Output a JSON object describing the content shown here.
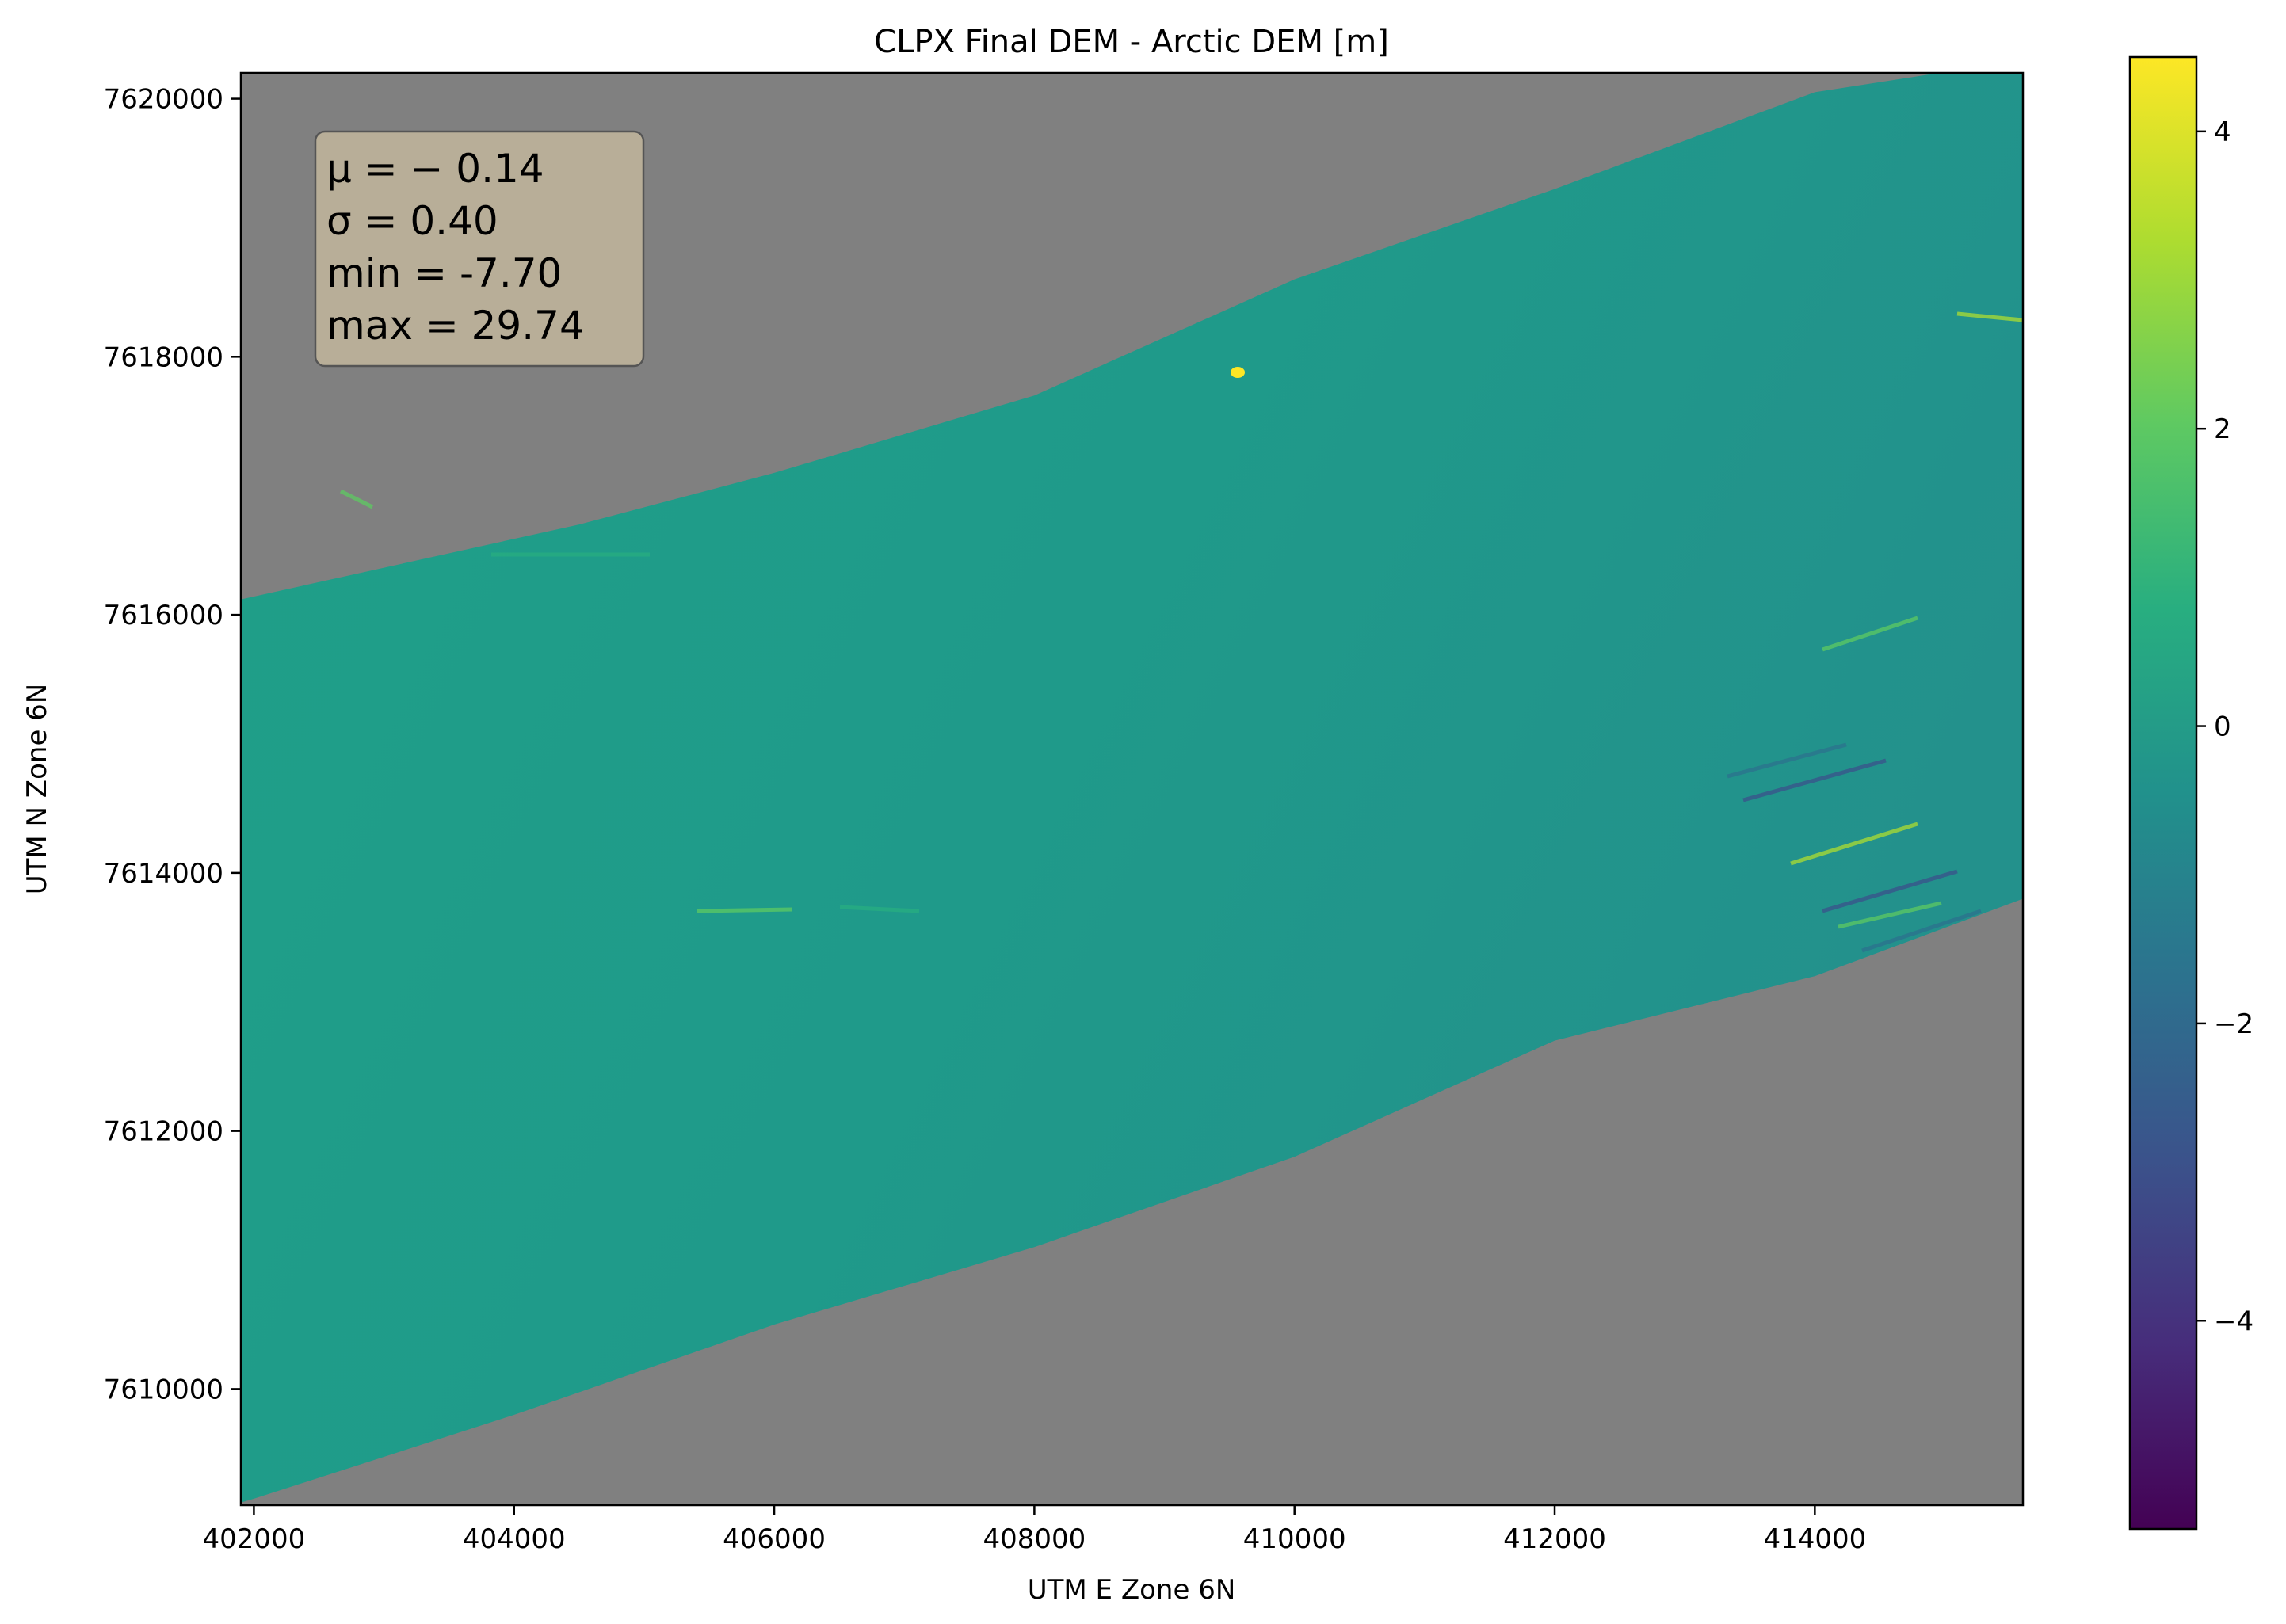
{
  "colors": {
    "background": "#ffffff",
    "nodata": "#808080",
    "stats_box_fill": "#b8ae98",
    "stats_box_edge": "#555555",
    "viridis": [
      "#440154",
      "#472d7b",
      "#3b528b",
      "#2c728e",
      "#21918c",
      "#28ae80",
      "#5ec962",
      "#addc30",
      "#fde725"
    ]
  },
  "chart_data": {
    "type": "heatmap",
    "title": "CLPX Final DEM - Arctic DEM [m]",
    "xlabel": "UTM E Zone 6N",
    "ylabel": "UTM N Zone 6N",
    "xlim": [
      401900,
      415600
    ],
    "ylim": [
      7609100,
      7620200
    ],
    "x_ticks": [
      402000,
      404000,
      406000,
      408000,
      410000,
      412000,
      414000
    ],
    "x_tick_labels": [
      "402000",
      "404000",
      "406000",
      "408000",
      "410000",
      "412000",
      "414000"
    ],
    "y_ticks": [
      7610000,
      7612000,
      7614000,
      7616000,
      7618000,
      7620000
    ],
    "y_tick_labels": [
      "7610000",
      "7612000",
      "7614000",
      "7616000",
      "7618000",
      "7620000"
    ],
    "grid": false,
    "colorbar": {
      "colormap": "viridis",
      "range": [
        -5.4,
        4.5
      ],
      "ticks": [
        4,
        2,
        0,
        -2,
        -4
      ],
      "tick_labels": [
        "4",
        "2",
        "0",
        "−2",
        "−4"
      ]
    },
    "swath_outline": [
      [
        401900,
        7616120
      ],
      [
        404500,
        7616700
      ],
      [
        406000,
        7617100
      ],
      [
        408000,
        7617700
      ],
      [
        410000,
        7618600
      ],
      [
        412000,
        7619300
      ],
      [
        414000,
        7620050
      ],
      [
        415600,
        7620300
      ],
      [
        415600,
        7613800
      ],
      [
        414000,
        7613200
      ],
      [
        412000,
        7612700
      ],
      [
        410000,
        7611800
      ],
      [
        408000,
        7611100
      ],
      [
        406000,
        7610500
      ],
      [
        404000,
        7609800
      ],
      [
        402000,
        7609150
      ],
      [
        401900,
        7609120
      ]
    ],
    "stats_box": {
      "lines": [
        "μ = − 0.14",
        "σ = 0.40",
        "min = -7.70",
        "max = 29.74"
      ],
      "location": "upper-left"
    }
  }
}
